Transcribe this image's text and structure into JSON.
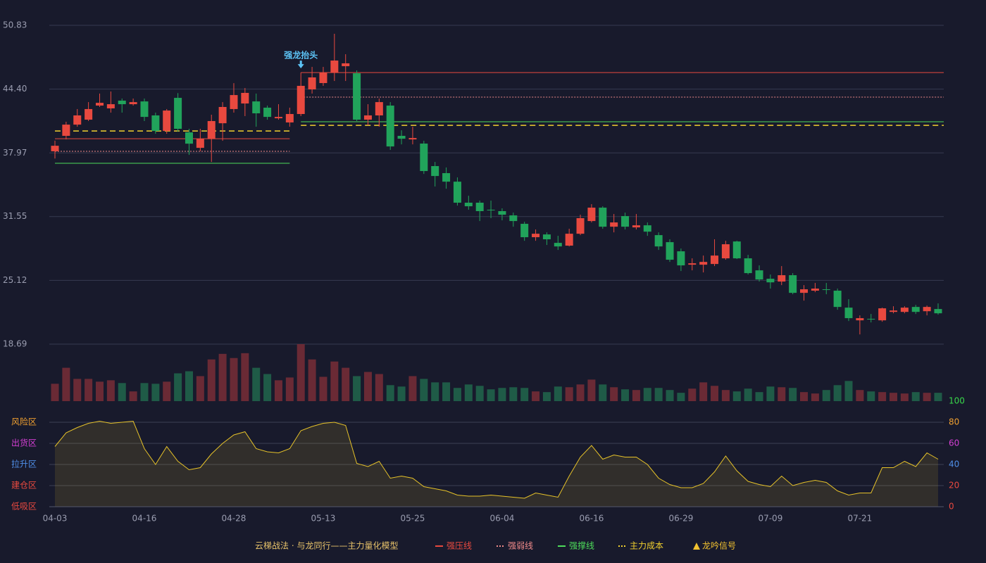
{
  "chart_data": {
    "type": "candlestick",
    "categories": [
      "04-03",
      null,
      null,
      null,
      null,
      null,
      null,
      null,
      "04-16",
      null,
      null,
      null,
      null,
      null,
      null,
      null,
      "04-28",
      null,
      null,
      null,
      null,
      null,
      null,
      null,
      "05-13",
      null,
      null,
      null,
      null,
      null,
      null,
      null,
      "05-25",
      null,
      null,
      null,
      null,
      null,
      null,
      null,
      "06-04",
      null,
      null,
      null,
      null,
      null,
      null,
      null,
      "06-16",
      null,
      null,
      null,
      null,
      null,
      null,
      null,
      "06-29",
      null,
      null,
      null,
      null,
      null,
      null,
      null,
      "07-09",
      null,
      null,
      null,
      null,
      null,
      null,
      null,
      "07-21",
      null,
      null,
      null,
      null,
      null,
      null,
      null
    ],
    "open": [
      38.13,
      39.69,
      40.82,
      41.32,
      42.74,
      42.46,
      43.24,
      42.88,
      43.16,
      41.75,
      40.18,
      43.52,
      40.04,
      38.48,
      39.4,
      40.96,
      42.39,
      42.95,
      43.16,
      42.53,
      41.46,
      41.04,
      41.89,
      44.37,
      45.01,
      46.07,
      46.71,
      46.0,
      41.32,
      41.75,
      42.74,
      39.69,
      39.33,
      38.91,
      36.64,
      35.93,
      35.07,
      32.95,
      32.95,
      32.24,
      32.1,
      31.67,
      30.82,
      29.47,
      29.75,
      28.9,
      28.62,
      29.82,
      31.1,
      32.45,
      30.53,
      31.6,
      30.46,
      30.67,
      29.68,
      28.97,
      28.05,
      26.7,
      26.7,
      26.77,
      27.34,
      29.04,
      27.34,
      26.13,
      25.28,
      25.0,
      25.64,
      23.86,
      24.08,
      24.22,
      24.08,
      22.37,
      21.09,
      21.24,
      21.09,
      21.94,
      21.94,
      22.44,
      22.01,
      22.23
    ],
    "high": [
      39.2,
      41.11,
      42.39,
      43.09,
      43.95,
      44.16,
      43.45,
      43.45,
      43.45,
      42.03,
      42.39,
      44.0,
      40.4,
      40.4,
      41.82,
      43.09,
      45.0,
      44.51,
      43.95,
      42.74,
      42.88,
      42.53,
      46.07,
      46.64,
      46.64,
      49.98,
      47.92,
      46.29,
      42.88,
      43.45,
      43.09,
      40.25,
      40.61,
      39.19,
      37.06,
      36.5,
      35.5,
      33.65,
      33.16,
      33.16,
      32.38,
      31.95,
      31.03,
      30.25,
      29.96,
      29.61,
      30.32,
      31.74,
      32.8,
      32.59,
      31.81,
      31.95,
      31.81,
      30.96,
      29.96,
      29.26,
      28.33,
      27.34,
      27.62,
      29.26,
      29.11,
      29.11,
      27.69,
      26.63,
      25.71,
      26.56,
      25.85,
      24.64,
      24.86,
      24.86,
      24.29,
      23.22,
      21.59,
      21.73,
      22.37,
      22.51,
      22.51,
      22.65,
      22.58,
      22.8
    ],
    "low": [
      37.4,
      39.33,
      40.61,
      41.18,
      42.6,
      42.03,
      42.03,
      42.74,
      41.18,
      39.9,
      39.9,
      40.11,
      37.77,
      38.13,
      37.06,
      39.19,
      42.03,
      41.68,
      40.61,
      41.32,
      41.32,
      40.61,
      41.68,
      43.95,
      44.73,
      45.22,
      45.22,
      41.18,
      40.75,
      40.61,
      38.27,
      38.83,
      38.83,
      35.85,
      34.58,
      34.36,
      32.66,
      32.24,
      31.1,
      31.39,
      31.17,
      30.53,
      29.11,
      29.11,
      28.69,
      28.19,
      28.54,
      29.68,
      30.96,
      30.32,
      29.96,
      30.25,
      30.25,
      29.61,
      28.19,
      26.98,
      26.06,
      26.13,
      25.92,
      26.56,
      27.2,
      27.27,
      25.71,
      25.0,
      24.29,
      24.64,
      23.72,
      23.08,
      23.93,
      23.72,
      22.16,
      21.02,
      19.67,
      20.88,
      20.95,
      21.8,
      21.8,
      21.73,
      21.59,
      21.66
    ],
    "close": [
      38.69,
      40.82,
      41.75,
      42.39,
      43.02,
      42.88,
      42.88,
      43.09,
      41.6,
      40.18,
      42.24,
      40.4,
      38.9,
      39.4,
      41.18,
      42.6,
      43.8,
      44.02,
      41.96,
      41.6,
      41.6,
      41.89,
      44.73,
      45.58,
      46.07,
      47.28,
      47.0,
      41.32,
      41.75,
      43.09,
      38.62,
      39.4,
      39.47,
      36.14,
      35.64,
      35.07,
      32.95,
      32.59,
      32.1,
      32.17,
      31.74,
      31.1,
      29.47,
      29.82,
      29.26,
      28.54,
      29.82,
      31.39,
      32.45,
      30.53,
      30.96,
      30.53,
      30.67,
      30.03,
      28.54,
      27.2,
      26.63,
      26.84,
      26.98,
      27.62,
      28.76,
      27.34,
      25.85,
      25.21,
      24.92,
      25.64,
      23.86,
      24.22,
      24.29,
      24.15,
      22.44,
      21.31,
      21.31,
      21.17,
      22.3,
      22.08,
      22.37,
      21.94,
      22.44,
      21.8
    ],
    "up_color": "#e8493f",
    "down_color": "#21a35b",
    "ylim": [
      18.69,
      50.83
    ],
    "yticks": [
      18.69,
      25.12,
      31.55,
      37.97,
      {
        "value": 44.4,
        "label": "44.40"
      },
      50.83
    ],
    "grid": true,
    "levels": [
      {
        "name": "强压线",
        "color": "#e8493f",
        "style": "solid",
        "segments": [
          {
            "from": 0,
            "to": 21,
            "value": 39.4
          },
          {
            "from": 22,
            "to": 79,
            "value": 46.07
          }
        ]
      },
      {
        "name": "强弱线",
        "color": "#f08a8a",
        "style": "dotted",
        "segments": [
          {
            "from": 0,
            "to": 21,
            "value": 38.13
          },
          {
            "from": 22,
            "to": 79,
            "value": 43.59
          }
        ]
      },
      {
        "name": "强撑线",
        "color": "#4ddc5a",
        "style": "solid",
        "segments": [
          {
            "from": 0,
            "to": 21,
            "value": 36.92
          },
          {
            "from": 22,
            "to": 79,
            "value": 41.11
          }
        ]
      },
      {
        "name": "主力成本",
        "color": "#f2d12e",
        "style": "dashed",
        "segments": [
          {
            "from": 0,
            "to": 21,
            "value": 40.18
          },
          {
            "from": 22,
            "to": 79,
            "value": 40.75
          }
        ]
      }
    ],
    "annotation": {
      "text": "强龙抬头",
      "index": 22,
      "color": "#5cc3f5"
    },
    "volume": {
      "up_color": "#6a2a35",
      "down_color": "#1f5b47",
      "values": [
        25,
        48,
        32,
        32,
        28,
        30,
        26,
        14,
        26,
        25,
        28,
        40,
        43,
        36,
        60,
        68,
        62,
        69,
        48,
        39,
        30,
        34,
        82,
        60,
        35,
        57,
        48,
        36,
        42,
        39,
        23,
        21,
        36,
        32,
        27,
        27,
        19,
        24,
        22,
        17,
        19,
        20,
        19,
        14,
        13,
        21,
        20,
        24,
        31,
        24,
        20,
        17,
        16,
        19,
        19,
        16,
        12,
        18,
        27,
        22,
        16,
        14,
        18,
        13,
        21,
        20,
        19,
        13,
        11,
        16,
        23,
        29,
        16,
        14,
        13,
        12,
        11,
        13,
        12,
        12
      ]
    },
    "oscillator": {
      "type": "area",
      "color": "#e6c229",
      "values": [
        57,
        70,
        75,
        79,
        81,
        79,
        80,
        81,
        55,
        40,
        57,
        43,
        35,
        37,
        50,
        60,
        68,
        71,
        55,
        52,
        51,
        55,
        72,
        76,
        79,
        80,
        77,
        41,
        38,
        43,
        27,
        29,
        27,
        19,
        17,
        15,
        11,
        10,
        10,
        11,
        10,
        9,
        8,
        13,
        11,
        9,
        29,
        47,
        58,
        45,
        49,
        47,
        47,
        40,
        27,
        21,
        18,
        18,
        22,
        33,
        48,
        34,
        24,
        21,
        19,
        29,
        20,
        23,
        25,
        23,
        15,
        11,
        13,
        13,
        37,
        37,
        43,
        38,
        51,
        45
      ],
      "ylim": [
        0,
        100
      ],
      "yticks": [
        0,
        20,
        40,
        60,
        80,
        100
      ],
      "ytick_colors": [
        "#e8493f",
        "#e8493f",
        "#4f8fe8",
        "#d43fd4",
        "#f0a030",
        "#38d84a"
      ],
      "zones": [
        {
          "value": 80,
          "label": "风险区",
          "color": "#f0a030"
        },
        {
          "value": 60,
          "label": "出货区",
          "color": "#d43fd4"
        },
        {
          "value": 40,
          "label": "拉升区",
          "color": "#4f8fe8"
        },
        {
          "value": 20,
          "label": "建仓区",
          "color": "#e8493f"
        },
        {
          "value": 0,
          "label": "低吸区",
          "color": "#e8493f"
        }
      ]
    },
    "legend": {
      "title": "云梯战法 · 与龙同行——主力量化模型",
      "title_color": "#e8c36a"
    },
    "signal": {
      "name": "龙吟信号",
      "color": "#f2c230"
    }
  }
}
